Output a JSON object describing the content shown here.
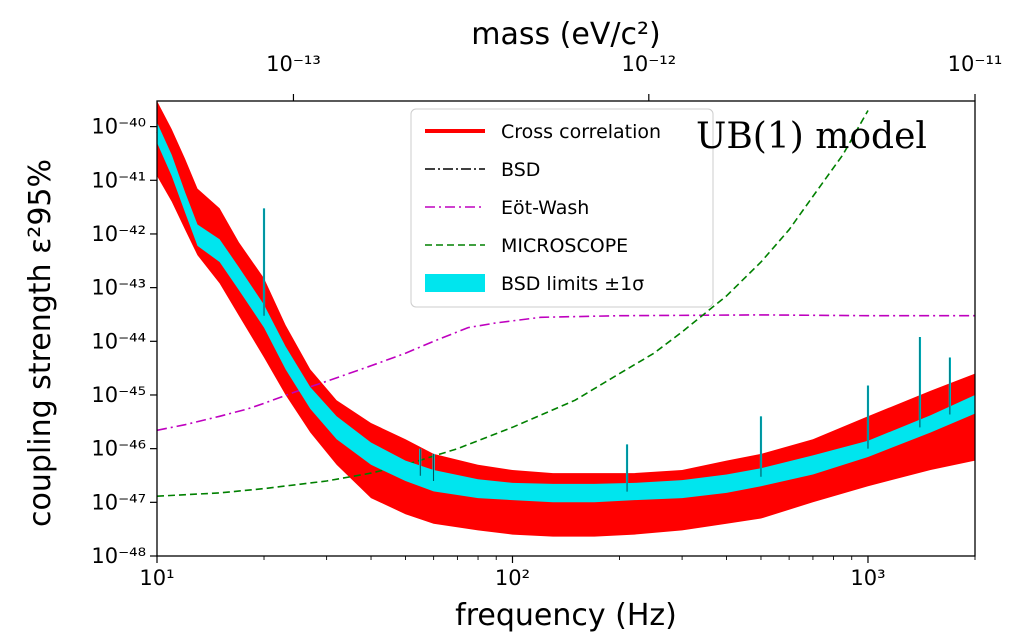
{
  "chart_data": {
    "type": "line",
    "title": "",
    "xlabel": "frequency (Hz)",
    "ylabel": "coupling strength ε²95%",
    "top_xlabel": "mass (eV/c²)",
    "annotation": "UB(1) model",
    "x_scale": "log",
    "y_scale": "log",
    "xlim": [
      10,
      2000
    ],
    "ylim": [
      1e-48,
      3e-40
    ],
    "grid": false,
    "legend_position": "top-center",
    "x_ticks": [
      {
        "value": 10,
        "label": "10¹"
      },
      {
        "value": 100,
        "label": "10²"
      },
      {
        "value": 1000,
        "label": "10³"
      }
    ],
    "top_ticks": [
      {
        "frequency": 24.2,
        "label": "10⁻¹³"
      },
      {
        "frequency": 241.8,
        "label": "10⁻¹²"
      },
      {
        "frequency": 2418,
        "label": "10⁻¹¹"
      }
    ],
    "y_ticks": [
      {
        "value": 1e-48,
        "label": "10⁻⁴⁸"
      },
      {
        "value": 1e-47,
        "label": "10⁻⁴⁷"
      },
      {
        "value": 1e-46,
        "label": "10⁻⁴⁶"
      },
      {
        "value": 1e-45,
        "label": "10⁻⁴⁵"
      },
      {
        "value": 1e-44,
        "label": "10⁻⁴⁴"
      },
      {
        "value": 1e-43,
        "label": "10⁻⁴³"
      },
      {
        "value": 1e-42,
        "label": "10⁻⁴²"
      },
      {
        "value": 1e-41,
        "label": "10⁻⁴¹"
      },
      {
        "value": 1e-40,
        "label": "10⁻⁴⁰"
      }
    ],
    "series": [
      {
        "name": "Cross correlation",
        "kind": "band",
        "color": "#ff0000",
        "x": [
          10,
          11,
          12,
          13,
          15,
          17,
          20,
          23,
          27,
          32,
          40,
          50,
          60,
          80,
          100,
          130,
          170,
          220,
          300,
          400,
          500,
          700,
          1000,
          1500,
          2000
        ],
        "lower": [
          1.2e-41,
          4e-42,
          1.2e-42,
          4e-43,
          1.2e-43,
          3e-44,
          5e-45,
          1e-45,
          2e-46,
          5e-47,
          1.2e-47,
          6e-48,
          4e-48,
          3e-48,
          2.5e-48,
          2.3e-48,
          2.3e-48,
          2.5e-48,
          3e-48,
          4e-48,
          5e-48,
          1e-47,
          2e-47,
          4e-47,
          6e-47
        ],
        "upper": [
          3e-40,
          9e-41,
          2.5e-41,
          7e-42,
          3e-42,
          7e-43,
          1.5e-43,
          2e-44,
          3e-45,
          8e-46,
          3e-46,
          1.5e-46,
          8e-47,
          5e-47,
          4e-47,
          3.5e-47,
          3.5e-47,
          3.5e-47,
          4e-47,
          6e-47,
          8e-47,
          1.5e-46,
          4e-46,
          1.2e-45,
          2.5e-45
        ]
      },
      {
        "name": "BSD",
        "kind": "line",
        "color": "#000000",
        "dash": "10,3,2,3",
        "x": [
          10,
          11,
          12,
          13,
          15,
          17,
          20,
          23,
          27,
          32,
          40,
          50,
          60,
          80,
          100,
          130,
          170,
          220,
          300,
          400,
          500,
          700,
          1000,
          1500,
          2000
        ],
        "y": [
          8e-41,
          2e-41,
          4e-42,
          1e-42,
          5e-43,
          1.5e-43,
          3e-44,
          5e-45,
          9e-46,
          2.5e-46,
          8e-47,
          4e-47,
          2.5e-47,
          1.8e-47,
          1.6e-47,
          1.5e-47,
          1.5e-47,
          1.6e-47,
          1.8e-47,
          2.3e-47,
          3e-47,
          5e-47,
          1e-46,
          3e-46,
          7e-46
        ]
      },
      {
        "name": "Eöt-Wash",
        "kind": "line",
        "color": "#bf00bf",
        "dash": "10,4,2,4",
        "x": [
          10,
          12,
          15,
          18,
          20,
          25,
          30,
          40,
          50,
          60,
          75,
          90,
          120,
          200,
          500,
          1000,
          2000
        ],
        "y": [
          2.2e-46,
          2.8e-46,
          4e-46,
          5.5e-46,
          7e-46,
          1.2e-45,
          1.8e-45,
          3.5e-45,
          6e-45,
          1e-44,
          1.8e-44,
          2.2e-44,
          2.8e-44,
          3e-44,
          3.1e-44,
          3e-44,
          3e-44
        ]
      },
      {
        "name": "MICROSCOPE",
        "kind": "line",
        "color": "#008000",
        "dash": "7,4",
        "x": [
          10,
          15,
          20,
          30,
          40,
          50,
          70,
          100,
          150,
          200,
          250,
          300,
          400,
          500,
          600,
          700,
          850,
          1000
        ],
        "y": [
          1.3e-47,
          1.5e-47,
          1.8e-47,
          2.5e-47,
          3.5e-47,
          5e-47,
          1e-46,
          2.5e-46,
          8e-46,
          2.5e-45,
          6e-45,
          1.5e-44,
          7e-44,
          3e-43,
          1.2e-42,
          5e-42,
          3e-41,
          2e-40
        ]
      },
      {
        "name": "BSD limits ±1σ",
        "kind": "band",
        "color": "#00e5ee",
        "x": [
          10,
          11,
          12,
          13,
          15,
          17,
          20,
          23,
          27,
          32,
          40,
          50,
          60,
          80,
          100,
          130,
          170,
          220,
          300,
          400,
          500,
          700,
          1000,
          1500,
          2000
        ],
        "lower": [
          5e-41,
          1.2e-41,
          2.5e-42,
          6e-43,
          3e-43,
          9e-44,
          1.8e-44,
          3e-45,
          5.5e-46,
          1.5e-46,
          5e-47,
          2.5e-47,
          1.6e-47,
          1.2e-47,
          1.1e-47,
          1e-47,
          1e-47,
          1.1e-47,
          1.2e-47,
          1.5e-47,
          2e-47,
          3.3e-47,
          7e-47,
          2e-46,
          4.5e-46
        ],
        "upper": [
          1.2e-40,
          3e-41,
          6e-42,
          1.5e-42,
          8e-43,
          2.4e-43,
          4.8e-44,
          8e-45,
          1.4e-45,
          4e-46,
          1.3e-46,
          6e-47,
          4e-47,
          2.7e-47,
          2.3e-47,
          2.2e-47,
          2.2e-47,
          2.3e-47,
          2.6e-47,
          3.3e-47,
          4.3e-47,
          7.5e-47,
          1.4e-46,
          4.2e-46,
          1e-45
        ]
      }
    ],
    "peaks": [
      {
        "x": 20,
        "y": 3e-42
      },
      {
        "x": 55,
        "y": 1e-46
      },
      {
        "x": 60,
        "y": 8e-47
      },
      {
        "x": 210,
        "y": 1.2e-46
      },
      {
        "x": 500,
        "y": 4e-46
      },
      {
        "x": 1000,
        "y": 1.5e-45
      },
      {
        "x": 1400,
        "y": 1.2e-44
      },
      {
        "x": 1700,
        "y": 5e-45
      }
    ]
  }
}
